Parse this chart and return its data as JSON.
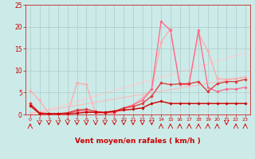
{
  "bg_color": "#cceae8",
  "grid_color": "#aacccc",
  "xlabel": "Vent moyen/en rafales ( km/h )",
  "xlabel_color": "#cc0000",
  "xlabel_fontsize": 6.5,
  "tick_color": "#cc0000",
  "xlim": [
    -0.5,
    23.5
  ],
  "ylim": [
    0,
    25
  ],
  "yticks": [
    0,
    5,
    10,
    15,
    20,
    25
  ],
  "xticks": [
    0,
    1,
    2,
    3,
    4,
    5,
    6,
    7,
    8,
    9,
    10,
    11,
    12,
    13,
    14,
    15,
    16,
    17,
    18,
    19,
    20,
    21,
    22,
    23
  ],
  "series": [
    {
      "x": [
        0,
        23
      ],
      "y": [
        0.3,
        8.5
      ],
      "color": "#ffbbbb",
      "linewidth": 0.8,
      "marker": null,
      "zorder": 1
    },
    {
      "x": [
        0,
        23
      ],
      "y": [
        0.0,
        14.0
      ],
      "color": "#ffcccc",
      "linewidth": 0.8,
      "marker": null,
      "zorder": 1
    },
    {
      "x": [
        0,
        1,
        2,
        3,
        4,
        5,
        6,
        7,
        8,
        9,
        10,
        11,
        12,
        13,
        14,
        15,
        16,
        17,
        18,
        19,
        20,
        21,
        22,
        23
      ],
      "y": [
        5.5,
        3.2,
        0.2,
        0.2,
        0.2,
        7.2,
        6.8,
        0.3,
        0.3,
        0.3,
        1.2,
        2.2,
        3.8,
        5.8,
        16.5,
        19.5,
        6.8,
        7.2,
        18.5,
        14.5,
        8.2,
        8.0,
        8.2,
        8.5
      ],
      "color": "#ffaaaa",
      "linewidth": 0.9,
      "marker": "D",
      "markersize": 1.8,
      "zorder": 3
    },
    {
      "x": [
        0,
        1,
        2,
        3,
        4,
        5,
        6,
        7,
        8,
        9,
        10,
        11,
        12,
        13,
        14,
        15,
        16,
        17,
        18,
        19,
        20,
        21,
        22,
        23
      ],
      "y": [
        2.5,
        0.2,
        0.2,
        0.2,
        0.2,
        0.8,
        0.8,
        0.4,
        0.4,
        0.4,
        1.5,
        2.2,
        3.2,
        5.8,
        21.2,
        19.2,
        6.8,
        6.8,
        19.2,
        6.2,
        5.2,
        5.8,
        5.8,
        6.2
      ],
      "color": "#ff6688",
      "linewidth": 0.9,
      "marker": "D",
      "markersize": 1.8,
      "zorder": 4
    },
    {
      "x": [
        0,
        1,
        2,
        3,
        4,
        5,
        6,
        7,
        8,
        9,
        10,
        11,
        12,
        13,
        14,
        15,
        16,
        17,
        18,
        19,
        20,
        21,
        22,
        23
      ],
      "y": [
        2.5,
        0.4,
        0.2,
        0.2,
        0.4,
        1.0,
        1.2,
        0.7,
        0.4,
        0.7,
        1.5,
        1.8,
        2.5,
        4.2,
        7.2,
        6.8,
        7.0,
        7.0,
        7.5,
        5.2,
        7.0,
        7.5,
        7.5,
        8.0
      ],
      "color": "#dd3333",
      "linewidth": 0.9,
      "marker": "D",
      "markersize": 1.8,
      "zorder": 5
    },
    {
      "x": [
        0,
        1,
        2,
        3,
        4,
        5,
        6,
        7,
        8,
        9,
        10,
        11,
        12,
        13,
        14,
        15,
        16,
        17,
        18,
        19,
        20,
        21,
        22,
        23
      ],
      "y": [
        2.0,
        0.2,
        0.2,
        0.2,
        0.2,
        0.3,
        0.5,
        0.5,
        0.5,
        0.8,
        1.0,
        1.2,
        1.5,
        2.5,
        3.0,
        2.5,
        2.5,
        2.5,
        2.5,
        2.5,
        2.5,
        2.5,
        2.5,
        2.5
      ],
      "color": "#cc0000",
      "linewidth": 1.0,
      "marker": "D",
      "markersize": 1.8,
      "zorder": 6
    }
  ],
  "arrow_directions": [
    1,
    -1,
    -1,
    -1,
    -1,
    -1,
    -1,
    -1,
    -1,
    -1,
    -1,
    -1,
    -1,
    -1,
    1,
    1,
    1,
    1,
    1,
    1,
    1,
    -1,
    1,
    1
  ],
  "arrow_color": "#cc0000"
}
